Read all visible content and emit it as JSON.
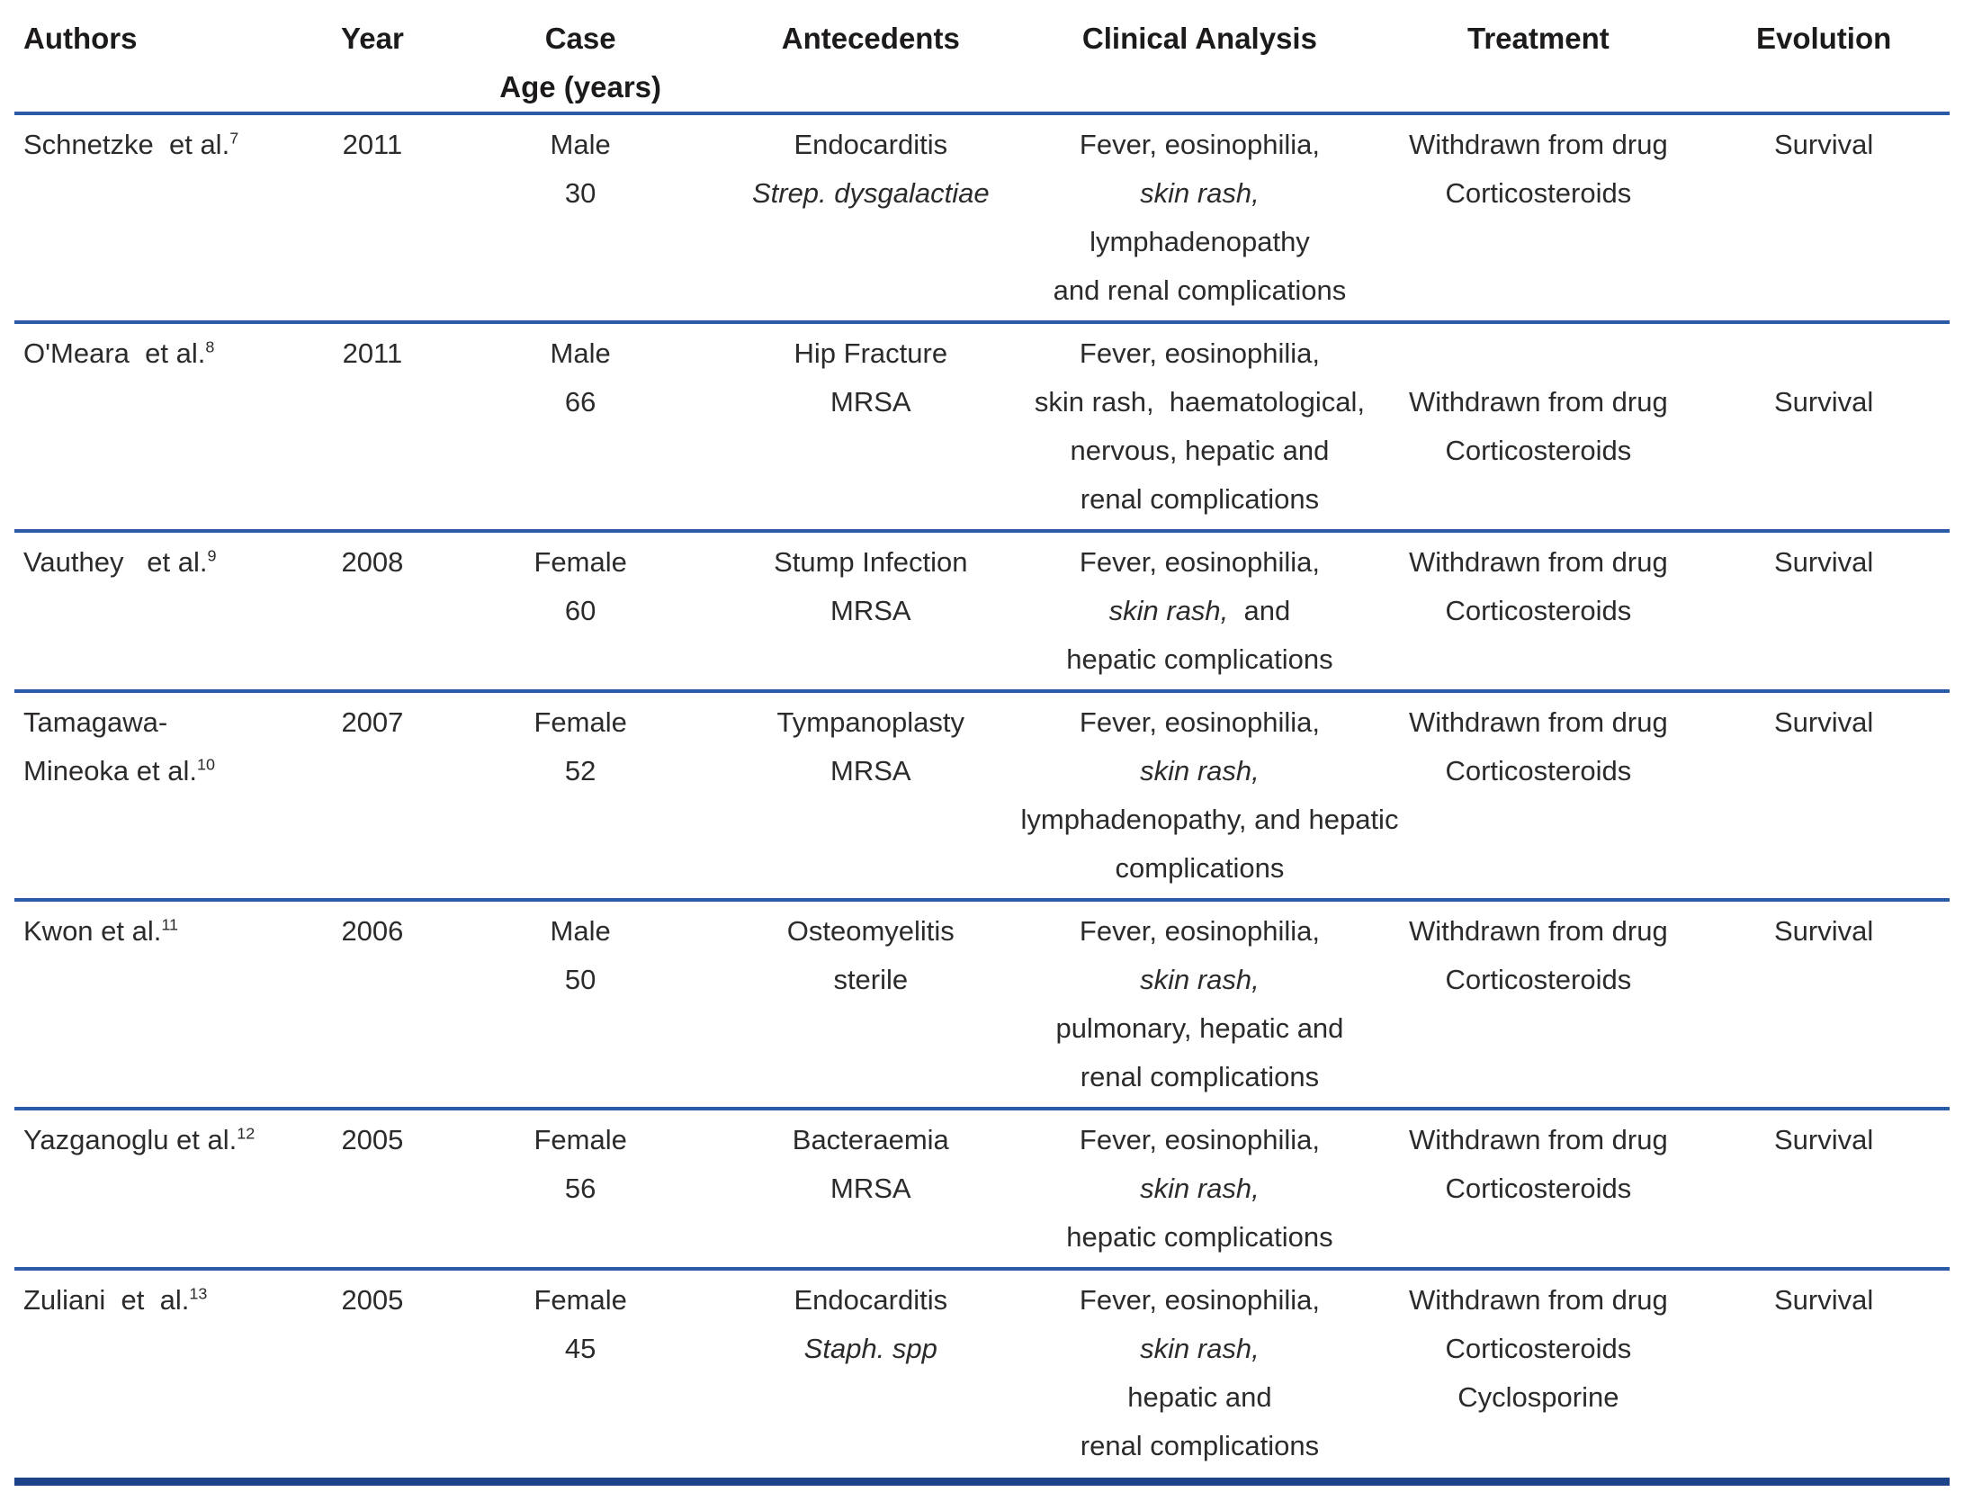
{
  "page": {
    "background_color": "#ffffff",
    "body_text_color": "#2d2a2b",
    "header_text_color": "#1d1a1b",
    "separator_color": "#2a5ca8",
    "bottom_border_color": "#1c4387"
  },
  "table": {
    "header": {
      "columns": [
        {
          "id": "authors",
          "align": "left",
          "lines": [
            "Authors"
          ]
        },
        {
          "id": "year",
          "align": "center",
          "lines": [
            "Year"
          ]
        },
        {
          "id": "case-age",
          "align": "center",
          "lines": [
            "Case",
            "Age (years)"
          ]
        },
        {
          "id": "antecedents",
          "align": "center",
          "lines": [
            "Antecedents"
          ]
        },
        {
          "id": "clinical-analysis",
          "align": "center",
          "lines": [
            "Clinical Analysis"
          ]
        },
        {
          "id": "treatment",
          "align": "center",
          "lines": [
            "Treatment"
          ]
        },
        {
          "id": "evolution",
          "align": "center",
          "lines": [
            "Evolution"
          ]
        }
      ]
    },
    "rows": [
      {
        "cells": [
          {
            "lines": [
              [
                {
                  "t": "Schnetzke  et al."
                },
                {
                  "t": "7",
                  "sup": true
                }
              ]
            ]
          },
          {
            "lines": [
              [
                {
                  "t": "2011"
                }
              ]
            ]
          },
          {
            "lines": [
              [
                {
                  "t": "Male"
                }
              ],
              [
                {
                  "t": "30"
                }
              ]
            ]
          },
          {
            "lines": [
              [
                {
                  "t": "Endocarditis"
                }
              ],
              [
                {
                  "t": "Strep. dysgalactiae",
                  "i": true
                }
              ]
            ]
          },
          {
            "lines": [
              [
                {
                  "t": "Fever, eosinophilia,"
                }
              ],
              [
                {
                  "t": "skin rash,",
                  "i": true
                }
              ],
              [
                {
                  "t": "lymphadenopathy"
                }
              ],
              [
                {
                  "t": "and renal complications"
                }
              ]
            ]
          },
          {
            "lines": [
              [
                {
                  "t": "Withdrawn from drug"
                }
              ],
              [
                {
                  "t": "Corticosteroids"
                }
              ]
            ]
          },
          {
            "lines": [
              [
                {
                  "t": "Survival"
                }
              ]
            ]
          }
        ]
      },
      {
        "cells": [
          {
            "lines": [
              [
                {
                  "t": "O'Meara  et al."
                },
                {
                  "t": "8",
                  "sup": true
                }
              ]
            ]
          },
          {
            "lines": [
              [
                {
                  "t": "2011"
                }
              ]
            ]
          },
          {
            "lines": [
              [
                {
                  "t": "Male"
                }
              ],
              [
                {
                  "t": "66"
                }
              ]
            ]
          },
          {
            "lines": [
              [
                {
                  "t": "Hip Fracture"
                }
              ],
              [
                {
                  "t": "MRSA"
                }
              ]
            ]
          },
          {
            "lines": [
              [
                {
                  "t": "Fever, eosinophilia,"
                }
              ],
              [
                {
                  "t": "skin rash,  haematological,"
                }
              ],
              [
                {
                  "t": "nervous, hepatic and"
                }
              ],
              [
                {
                  "t": "renal complications"
                }
              ]
            ]
          },
          {
            "lines": [
              [
                {
                  "t": ""
                }
              ],
              [
                {
                  "t": "Withdrawn from drug"
                }
              ],
              [
                {
                  "t": "Corticosteroids"
                }
              ]
            ]
          },
          {
            "lines": [
              [
                {
                  "t": ""
                }
              ],
              [
                {
                  "t": "Survival"
                }
              ]
            ]
          }
        ]
      },
      {
        "cells": [
          {
            "lines": [
              [
                {
                  "t": "Vauthey   et al."
                },
                {
                  "t": "9",
                  "sup": true
                }
              ]
            ]
          },
          {
            "lines": [
              [
                {
                  "t": "2008"
                }
              ]
            ]
          },
          {
            "lines": [
              [
                {
                  "t": "Female"
                }
              ],
              [
                {
                  "t": "60"
                }
              ]
            ]
          },
          {
            "lines": [
              [
                {
                  "t": "Stump Infection"
                }
              ],
              [
                {
                  "t": "MRSA"
                }
              ]
            ]
          },
          {
            "lines": [
              [
                {
                  "t": "Fever, eosinophilia,"
                }
              ],
              [
                {
                  "t": "skin rash,",
                  "i": true
                },
                {
                  "t": "  and"
                }
              ],
              [
                {
                  "t": "hepatic complications"
                }
              ]
            ]
          },
          {
            "lines": [
              [
                {
                  "t": "Withdrawn from drug"
                }
              ],
              [
                {
                  "t": "Corticosteroids"
                }
              ]
            ]
          },
          {
            "lines": [
              [
                {
                  "t": "Survival"
                }
              ]
            ]
          }
        ]
      },
      {
        "cells": [
          {
            "lines": [
              [
                {
                  "t": "Tamagawa-"
                }
              ],
              [
                {
                  "t": "Mineoka et al."
                },
                {
                  "t": "10",
                  "sup": true
                }
              ]
            ]
          },
          {
            "lines": [
              [
                {
                  "t": "2007"
                }
              ]
            ]
          },
          {
            "lines": [
              [
                {
                  "t": "Female"
                }
              ],
              [
                {
                  "t": "52"
                }
              ]
            ]
          },
          {
            "lines": [
              [
                {
                  "t": "Tympanoplasty"
                }
              ],
              [
                {
                  "t": "MRSA"
                }
              ]
            ]
          },
          {
            "lines": [
              [
                {
                  "t": "Fever, eosinophilia,"
                }
              ],
              [
                {
                  "t": "skin rash,",
                  "i": true
                }
              ],
              [
                {
                  "t": "lymphadenopathy, and hepatic"
                }
              ],
              [
                {
                  "t": "complications"
                }
              ]
            ]
          },
          {
            "lines": [
              [
                {
                  "t": "Withdrawn from drug"
                }
              ],
              [
                {
                  "t": "Corticosteroids"
                }
              ]
            ]
          },
          {
            "lines": [
              [
                {
                  "t": "Survival"
                }
              ]
            ]
          }
        ]
      },
      {
        "cells": [
          {
            "lines": [
              [
                {
                  "t": "Kwon et al."
                },
                {
                  "t": "11",
                  "sup": true
                }
              ]
            ]
          },
          {
            "lines": [
              [
                {
                  "t": "2006"
                }
              ]
            ]
          },
          {
            "lines": [
              [
                {
                  "t": "Male"
                }
              ],
              [
                {
                  "t": "50"
                }
              ]
            ]
          },
          {
            "lines": [
              [
                {
                  "t": "Osteomyelitis"
                }
              ],
              [
                {
                  "t": "sterile"
                }
              ]
            ]
          },
          {
            "lines": [
              [
                {
                  "t": "Fever, eosinophilia,"
                }
              ],
              [
                {
                  "t": "skin rash,",
                  "i": true
                }
              ],
              [
                {
                  "t": "pulmonary, hepatic and"
                }
              ],
              [
                {
                  "t": "renal complications"
                }
              ]
            ]
          },
          {
            "lines": [
              [
                {
                  "t": "Withdrawn from drug"
                }
              ],
              [
                {
                  "t": "Corticosteroids"
                }
              ]
            ]
          },
          {
            "lines": [
              [
                {
                  "t": "Survival"
                }
              ]
            ]
          }
        ]
      },
      {
        "cells": [
          {
            "lines": [
              [
                {
                  "t": "Yazganoglu et al."
                },
                {
                  "t": "12",
                  "sup": true
                }
              ]
            ]
          },
          {
            "lines": [
              [
                {
                  "t": "2005"
                }
              ]
            ]
          },
          {
            "lines": [
              [
                {
                  "t": "Female"
                }
              ],
              [
                {
                  "t": "56"
                }
              ]
            ]
          },
          {
            "lines": [
              [
                {
                  "t": "Bacteraemia"
                }
              ],
              [
                {
                  "t": "MRSA"
                }
              ]
            ]
          },
          {
            "lines": [
              [
                {
                  "t": "Fever, eosinophilia,"
                }
              ],
              [
                {
                  "t": "skin rash,",
                  "i": true
                }
              ],
              [
                {
                  "t": "hepatic complications"
                }
              ]
            ]
          },
          {
            "lines": [
              [
                {
                  "t": "Withdrawn from drug"
                }
              ],
              [
                {
                  "t": "Corticosteroids"
                }
              ]
            ]
          },
          {
            "lines": [
              [
                {
                  "t": "Survival"
                }
              ]
            ]
          }
        ]
      },
      {
        "cells": [
          {
            "lines": [
              [
                {
                  "t": "Zuliani  et  al."
                },
                {
                  "t": "13",
                  "sup": true
                }
              ]
            ]
          },
          {
            "lines": [
              [
                {
                  "t": "2005"
                }
              ]
            ]
          },
          {
            "lines": [
              [
                {
                  "t": "Female"
                }
              ],
              [
                {
                  "t": "45"
                }
              ]
            ]
          },
          {
            "lines": [
              [
                {
                  "t": "Endocarditis"
                }
              ],
              [
                {
                  "t": "Staph. spp",
                  "i": true
                }
              ]
            ]
          },
          {
            "lines": [
              [
                {
                  "t": "Fever, eosinophilia,"
                }
              ],
              [
                {
                  "t": "skin rash,",
                  "i": true
                }
              ],
              [
                {
                  "t": "hepatic and"
                }
              ],
              [
                {
                  "t": "renal complications"
                }
              ]
            ]
          },
          {
            "lines": [
              [
                {
                  "t": "Withdrawn from drug"
                }
              ],
              [
                {
                  "t": "Corticosteroids"
                }
              ],
              [
                {
                  "t": "Cyclosporine"
                }
              ]
            ]
          },
          {
            "lines": [
              [
                {
                  "t": "Survival"
                }
              ]
            ]
          }
        ]
      }
    ]
  }
}
